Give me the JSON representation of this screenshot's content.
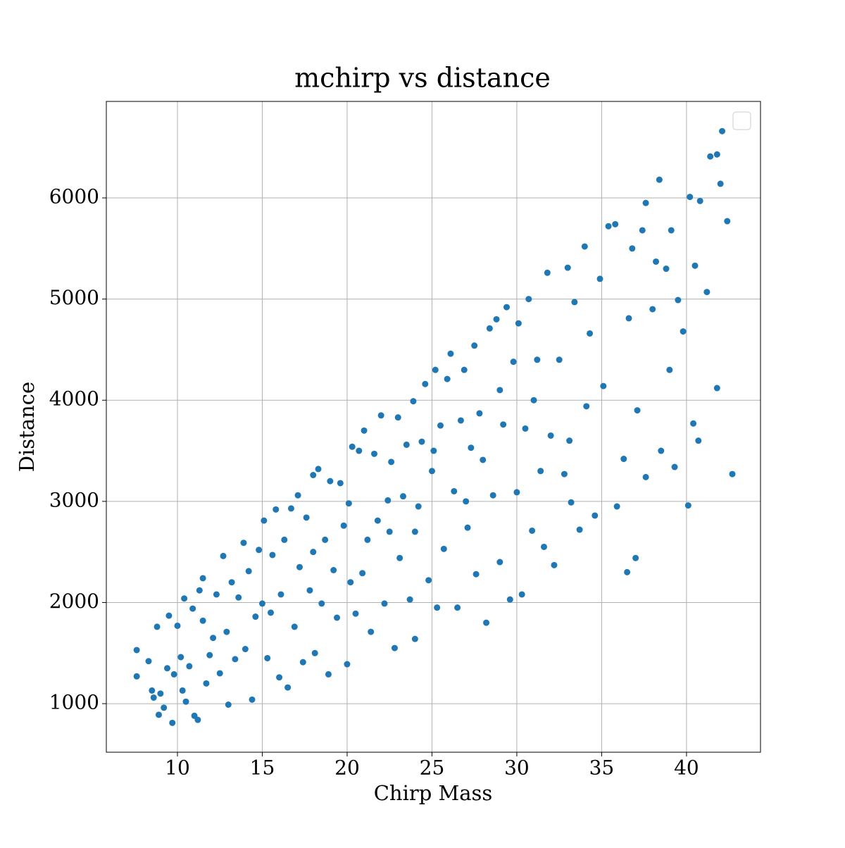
{
  "chart_data": {
    "type": "scatter",
    "title": "mchirp vs distance",
    "xlabel": "Chirp Mass",
    "ylabel": "Distance",
    "color": "#1f77b4",
    "grid": true,
    "xlim": [
      5.81,
      44.36
    ],
    "ylim": [
      520,
      6954
    ],
    "xticks": [
      10,
      15,
      20,
      25,
      30,
      35,
      40
    ],
    "yticks": [
      1000,
      2000,
      3000,
      4000,
      5000,
      6000
    ],
    "x": [
      7.6,
      7.6,
      8.3,
      8.5,
      8.6,
      8.8,
      8.9,
      9.0,
      9.2,
      9.4,
      9.5,
      9.7,
      9.8,
      10.0,
      10.2,
      10.3,
      10.4,
      10.5,
      10.7,
      10.9,
      11.0,
      11.2,
      11.3,
      11.5,
      11.5,
      11.7,
      11.9,
      12.1,
      12.3,
      12.5,
      12.7,
      12.9,
      13.0,
      13.2,
      13.4,
      13.6,
      13.9,
      14.0,
      14.2,
      14.4,
      14.6,
      14.8,
      15.0,
      15.1,
      15.3,
      15.6,
      15.8,
      16.0,
      16.1,
      16.3,
      16.5,
      16.7,
      16.9,
      17.1,
      17.2,
      17.4,
      17.6,
      17.8,
      18.0,
      18.1,
      18.3,
      18.5,
      18.7,
      18.9,
      19.0,
      19.2,
      19.4,
      19.6,
      19.8,
      20.0,
      20.1,
      20.3,
      20.5,
      20.7,
      20.9,
      21.0,
      21.2,
      21.4,
      21.6,
      21.8,
      22.0,
      22.2,
      22.4,
      22.6,
      22.8,
      23.0,
      23.1,
      23.3,
      23.5,
      23.7,
      23.9,
      24.0,
      24.2,
      24.4,
      24.6,
      24.8,
      25.0,
      25.2,
      25.3,
      25.5,
      25.7,
      25.9,
      26.1,
      26.3,
      26.5,
      26.7,
      26.9,
      27.1,
      27.3,
      27.5,
      27.6,
      27.8,
      28.0,
      28.2,
      28.4,
      28.6,
      28.8,
      29.0,
      29.2,
      29.4,
      29.6,
      29.8,
      30.0,
      30.1,
      30.3,
      30.5,
      30.7,
      30.9,
      31.2,
      31.4,
      31.6,
      31.8,
      32.0,
      32.2,
      32.5,
      32.8,
      33.0,
      33.2,
      33.4,
      33.7,
      34.0,
      34.1,
      34.3,
      34.6,
      34.9,
      35.1,
      35.4,
      35.8,
      35.9,
      36.3,
      36.5,
      36.6,
      36.8,
      37.0,
      37.1,
      37.4,
      37.6,
      37.6,
      38.0,
      38.2,
      38.4,
      38.5,
      38.8,
      39.0,
      39.1,
      39.3,
      39.5,
      39.8,
      40.1,
      40.2,
      40.4,
      40.5,
      40.7,
      40.8,
      41.2,
      41.4,
      41.8,
      41.8,
      42.1,
      42.4,
      42.7,
      42.0,
      33.1,
      25.1,
      20.2,
      15.5,
      18.0,
      22.5,
      27.0,
      29.0,
      31.0,
      24.0
    ],
    "values": [
      1530,
      1270,
      1420,
      1130,
      1060,
      1760,
      890,
      1100,
      960,
      1350,
      1870,
      810,
      1290,
      1770,
      1460,
      1130,
      2040,
      1020,
      1370,
      1940,
      880,
      840,
      2120,
      2240,
      1820,
      1200,
      1480,
      1650,
      2080,
      1300,
      2460,
      1710,
      990,
      2200,
      1440,
      2050,
      2590,
      1540,
      2310,
      1040,
      1860,
      2520,
      1990,
      2810,
      1450,
      2470,
      2920,
      1260,
      2080,
      2620,
      1160,
      2930,
      1760,
      3060,
      2350,
      1410,
      2840,
      2120,
      3260,
      1500,
      3320,
      1990,
      2620,
      1290,
      3200,
      2320,
      1850,
      3180,
      2760,
      1390,
      2980,
      3540,
      1890,
      3500,
      2290,
      3700,
      2620,
      1710,
      3470,
      2810,
      3850,
      1990,
      3010,
      3390,
      1550,
      3830,
      2440,
      3050,
      3560,
      2030,
      3990,
      1640,
      2950,
      3590,
      4160,
      2220,
      3300,
      4300,
      1950,
      3750,
      2530,
      4210,
      4460,
      3100,
      1950,
      3800,
      4300,
      2740,
      3530,
      4540,
      2280,
      3870,
      3410,
      1800,
      4710,
      3060,
      4800,
      2400,
      3760,
      4920,
      2030,
      4380,
      3090,
      4760,
      2080,
      3720,
      5000,
      2710,
      4400,
      3300,
      2550,
      5260,
      3650,
      2370,
      4400,
      3270,
      5310,
      2990,
      4970,
      2720,
      5520,
      3940,
      4660,
      2860,
      5200,
      4140,
      5720,
      5740,
      2950,
      3420,
      2300,
      4810,
      5500,
      2440,
      3900,
      5680,
      5950,
      3240,
      4900,
      5370,
      6180,
      3500,
      5300,
      4300,
      5680,
      3340,
      4990,
      4680,
      2960,
      6010,
      3770,
      5330,
      3600,
      5970,
      5070,
      6410,
      6430,
      4120,
      6660,
      5770,
      3270,
      6140,
      3600,
      3500,
      2200,
      1900,
      2500,
      2700,
      3000,
      4100,
      4000,
      2700
    ]
  }
}
